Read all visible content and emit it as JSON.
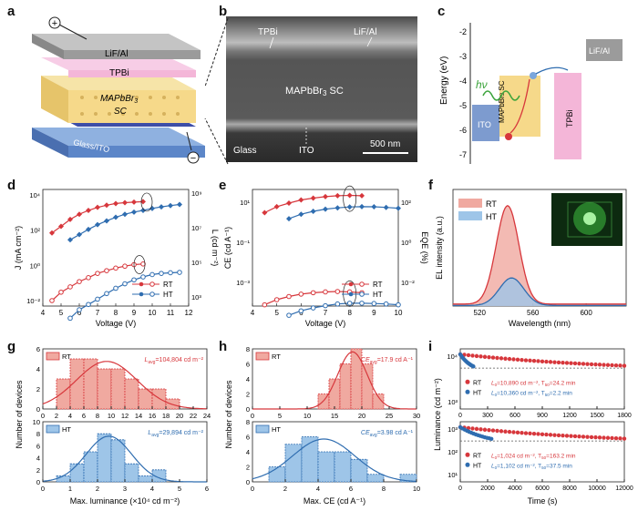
{
  "panels": {
    "a": "a",
    "b": "b",
    "c": "c",
    "d": "d",
    "e": "e",
    "f": "f",
    "g": "g",
    "h": "h",
    "i": "i"
  },
  "colors": {
    "rt": "#d7373c",
    "ht": "#2f6db0",
    "rt_fill": "#f0a9a0",
    "ht_fill": "#9ec5e8",
    "itO": "#7d9bcf",
    "mapb": "#f6d98a",
    "tpbi": "#f4b6d8",
    "lif": "#9b9b9b"
  },
  "device": {
    "layers": [
      "LiF/Al",
      "TPBi",
      "MAPbBr",
      "SC",
      "Glass/ITO"
    ],
    "mapb_sub": "3",
    "plus": "+",
    "minus": "−"
  },
  "sem": {
    "tpbi": "TPBi",
    "lif": "LiF/Al",
    "mapb": "MAPbBr",
    "mapb_sub": "3",
    "mapb_suffix": " SC",
    "glass": "Glass",
    "ito": "ITO",
    "scale": "500 nm"
  },
  "energy": {
    "ylabel": "Energy (eV)",
    "yticks": [
      "-2",
      "-3",
      "-4",
      "-5",
      "-6",
      "-7"
    ],
    "ito": "ITO",
    "mapb": "MAPbBr",
    "mapb_sub": "3",
    "mapb_suffix": " SC",
    "tpbi": "TPBi",
    "lif": "LiF/Al",
    "hv": "hν"
  },
  "chart_data": [
    {
      "id": "d",
      "type": "line",
      "xlabel": "Voltage (V)",
      "ylabel": "J (mA cm⁻²)",
      "y2label": "L (cd m⁻²)",
      "xlim": [
        4,
        12
      ],
      "xticks": [
        "4",
        "5",
        "6",
        "7",
        "8",
        "9",
        "10",
        "11",
        "12"
      ],
      "yticks": [
        "10⁴",
        "10²",
        "10⁰",
        "10⁻²"
      ],
      "y2ticks": [
        "10⁹",
        "10⁷",
        "10⁵",
        "10³"
      ],
      "legend": [
        "RT",
        "HT"
      ],
      "series": [
        {
          "name": "RT",
          "axis": "L",
          "x": [
            4.5,
            5,
            5.5,
            6,
            6.5,
            7,
            7.5,
            8,
            8.5,
            9,
            9.5
          ],
          "values": [
            5000000.0,
            12000000.0,
            30000000.0,
            60000000.0,
            100000000.0,
            150000000.0,
            200000000.0,
            250000000.0,
            280000000.0,
            300000000.0,
            320000000.0
          ]
        },
        {
          "name": "HT",
          "axis": "L",
          "x": [
            5.5,
            6,
            6.5,
            7,
            7.5,
            8,
            8.5,
            9,
            9.5,
            10,
            10.5,
            11,
            11.5
          ],
          "values": [
            2000000.0,
            4000000.0,
            8000000.0,
            15000000.0,
            25000000.0,
            40000000.0,
            60000000.0,
            80000000.0,
            100000000.0,
            130000000.0,
            160000000.0,
            190000000.0,
            220000000.0
          ]
        },
        {
          "name": "RT",
          "axis": "J",
          "x": [
            4.5,
            5,
            5.5,
            6,
            6.5,
            7,
            7.5,
            8,
            8.5,
            9,
            9.5
          ],
          "values": [
            0.01,
            0.03,
            0.06,
            0.12,
            0.2,
            0.35,
            0.5,
            0.7,
            0.9,
            1.1,
            1.2
          ]
        },
        {
          "name": "HT",
          "axis": "J",
          "x": [
            5.5,
            6,
            6.5,
            7,
            7.5,
            8,
            8.5,
            9,
            9.5,
            10,
            10.5,
            11,
            11.5
          ],
          "values": [
            0.001,
            0.003,
            0.006,
            0.012,
            0.025,
            0.05,
            0.09,
            0.15,
            0.22,
            0.3,
            0.35,
            0.38,
            0.4
          ]
        }
      ]
    },
    {
      "id": "e",
      "type": "line",
      "xlabel": "Voltage (V)",
      "ylabel": "CE (cd A⁻¹)",
      "y2label": "EQE (%)",
      "xlim": [
        4,
        10
      ],
      "xticks": [
        "4",
        "5",
        "6",
        "7",
        "8",
        "9",
        "10"
      ],
      "yticks": [
        "10¹",
        "10⁻¹",
        "10⁻³"
      ],
      "y2ticks": [
        "10²",
        "10⁰",
        "10⁻²"
      ],
      "legend": [
        "RT",
        "HT"
      ],
      "series": [
        {
          "name": "RT",
          "axis": "CE",
          "x": [
            4.5,
            5,
            5.5,
            6,
            6.5,
            7,
            7.5,
            8,
            8.5
          ],
          "values": [
            3,
            6,
            9,
            13,
            16,
            19,
            21,
            22,
            21
          ]
        },
        {
          "name": "HT",
          "axis": "CE",
          "x": [
            5.5,
            6,
            6.5,
            7,
            7.5,
            8,
            8.5,
            9,
            9.5,
            10
          ],
          "values": [
            1.5,
            2.5,
            3.5,
            4.5,
            5.2,
            5.8,
            6,
            5.9,
            5.5,
            5
          ]
        },
        {
          "name": "RT",
          "axis": "EQE",
          "x": [
            4.5,
            5,
            5.5,
            6,
            6.5,
            7,
            7.5,
            8,
            8.5
          ],
          "values": [
            0.05,
            0.09,
            0.13,
            0.17,
            0.2,
            0.22,
            0.23,
            0.22,
            0.2
          ]
        },
        {
          "name": "HT",
          "axis": "EQE",
          "x": [
            5.5,
            6,
            6.5,
            7,
            7.5,
            8,
            8.5,
            9,
            9.5,
            10
          ],
          "values": [
            0.015,
            0.025,
            0.035,
            0.045,
            0.055,
            0.06,
            0.06,
            0.058,
            0.055,
            0.05
          ]
        }
      ]
    },
    {
      "id": "f",
      "type": "area",
      "xlabel": "Wavelength (nm)",
      "ylabel": "EL intensity (a.u.)",
      "xlim": [
        500,
        630
      ],
      "xticks": [
        "520",
        "560",
        "600"
      ],
      "legend": [
        "RT",
        "HT"
      ],
      "series": [
        {
          "name": "RT",
          "peak": 541,
          "width": 12,
          "amp": 1.0
        },
        {
          "name": "HT",
          "peak": 544,
          "width": 13,
          "amp": 0.28
        }
      ]
    },
    {
      "id": "g",
      "type": "bar",
      "xlabel": "Max. luminance (×10⁴ cd m⁻²)",
      "ylabel": "Number of devices",
      "xlim": [
        0,
        24
      ],
      "xticks": [
        "0",
        "2",
        "4",
        "6",
        "8",
        "10",
        "12",
        "14",
        "16",
        "18",
        "20",
        "22",
        "24"
      ],
      "top": {
        "name": "RT",
        "annotation": "L",
        "annotation_sub": "avg",
        "annotation_suffix": "=104,804 cd m⁻²",
        "ylim": [
          0,
          6
        ],
        "yticks": [
          "0",
          "2",
          "4",
          "6"
        ],
        "bins": [
          [
            2,
            4
          ],
          [
            4,
            6
          ],
          [
            6,
            8
          ],
          [
            8,
            10
          ],
          [
            10,
            12
          ],
          [
            12,
            14
          ],
          [
            14,
            16
          ],
          [
            16,
            18
          ],
          [
            18,
            20
          ]
        ],
        "values": [
          3,
          5,
          5,
          4,
          4,
          3,
          2,
          2,
          1
        ]
      },
      "bottom": {
        "name": "HT",
        "annotation": "L",
        "annotation_sub": "avg",
        "annotation_suffix": "=29,894 cd m⁻²",
        "ylim": [
          0,
          10
        ],
        "yticks": [
          "0",
          "2",
          "4",
          "6",
          "8",
          "10"
        ],
        "bins": [
          [
            0.5,
            1
          ],
          [
            1,
            1.5
          ],
          [
            1.5,
            2
          ],
          [
            2,
            2.5
          ],
          [
            2.5,
            3
          ],
          [
            3,
            3.5
          ],
          [
            3.5,
            4
          ],
          [
            4,
            4.5
          ]
        ],
        "values": [
          1,
          3,
          5,
          8,
          7,
          3,
          1,
          2
        ]
      }
    },
    {
      "id": "h",
      "type": "bar",
      "xlabel": "Max. CE (cd A⁻¹)",
      "ylabel": "Number of devices",
      "top": {
        "name": "RT",
        "annotation": "CE",
        "annotation_sub": "avg",
        "annotation_suffix": "=17.9 cd A⁻¹",
        "xlim": [
          0,
          30
        ],
        "xticks": [
          "0",
          "5",
          "10",
          "15",
          "20",
          "25",
          "30"
        ],
        "ylim": [
          0,
          8
        ],
        "yticks": [
          "0",
          "2",
          "4",
          "6",
          "8"
        ],
        "bins": [
          [
            12,
            14
          ],
          [
            14,
            16
          ],
          [
            16,
            18
          ],
          [
            18,
            20
          ],
          [
            20,
            22
          ],
          [
            22,
            24
          ]
        ],
        "values": [
          2,
          4,
          6,
          8,
          6,
          2
        ]
      },
      "bottom": {
        "name": "HT",
        "annotation": "CE",
        "annotation_sub": "avg",
        "annotation_suffix": "=3.98 cd A⁻¹",
        "xlim": [
          0,
          10
        ],
        "xticks": [
          "0",
          "2",
          "4",
          "6",
          "8",
          "10"
        ],
        "ylim": [
          0,
          8
        ],
        "yticks": [
          "0",
          "2",
          "4",
          "6",
          "8"
        ],
        "bins": [
          [
            1,
            2
          ],
          [
            2,
            3
          ],
          [
            3,
            4
          ],
          [
            4,
            5
          ],
          [
            5,
            6
          ],
          [
            6,
            7
          ],
          [
            7,
            8
          ],
          [
            9,
            10
          ]
        ],
        "values": [
          2,
          5,
          6,
          4,
          4,
          3,
          1,
          1
        ]
      }
    },
    {
      "id": "i",
      "type": "scatter",
      "xlabel": "Time (s)",
      "ylabel": "Luminance (cd m⁻²)",
      "top": {
        "xlim": [
          0,
          1800
        ],
        "xticks": [
          "0",
          "300",
          "600",
          "900",
          "1200",
          "1500",
          "1800"
        ],
        "yticks": [
          "10⁴",
          "10³"
        ],
        "legend": [
          {
            "name": "RT",
            "text": "=10,890 cd m⁻², T",
            "sub": "50",
            "suffix": "=24.2 min"
          },
          {
            "name": "HT",
            "text": "=10,360 cd m⁻², T",
            "sub": "50",
            "suffix": "=2.2 min"
          }
        ]
      },
      "bottom": {
        "xlim": [
          0,
          12000
        ],
        "xticks": [
          "0",
          "2000",
          "4000",
          "6000",
          "8000",
          "10000",
          "12000"
        ],
        "yticks": [
          "10³",
          "10²",
          "10¹"
        ],
        "legend": [
          {
            "name": "RT",
            "text": "=1,024 cd m⁻², T",
            "sub": "50",
            "suffix": "=163.2 min"
          },
          {
            "name": "HT",
            "text": "=1,102 cd m⁻², T",
            "sub": "50",
            "suffix": "=37.5 min"
          }
        ]
      },
      "L0": "L",
      "L0_sub": "0"
    }
  ]
}
